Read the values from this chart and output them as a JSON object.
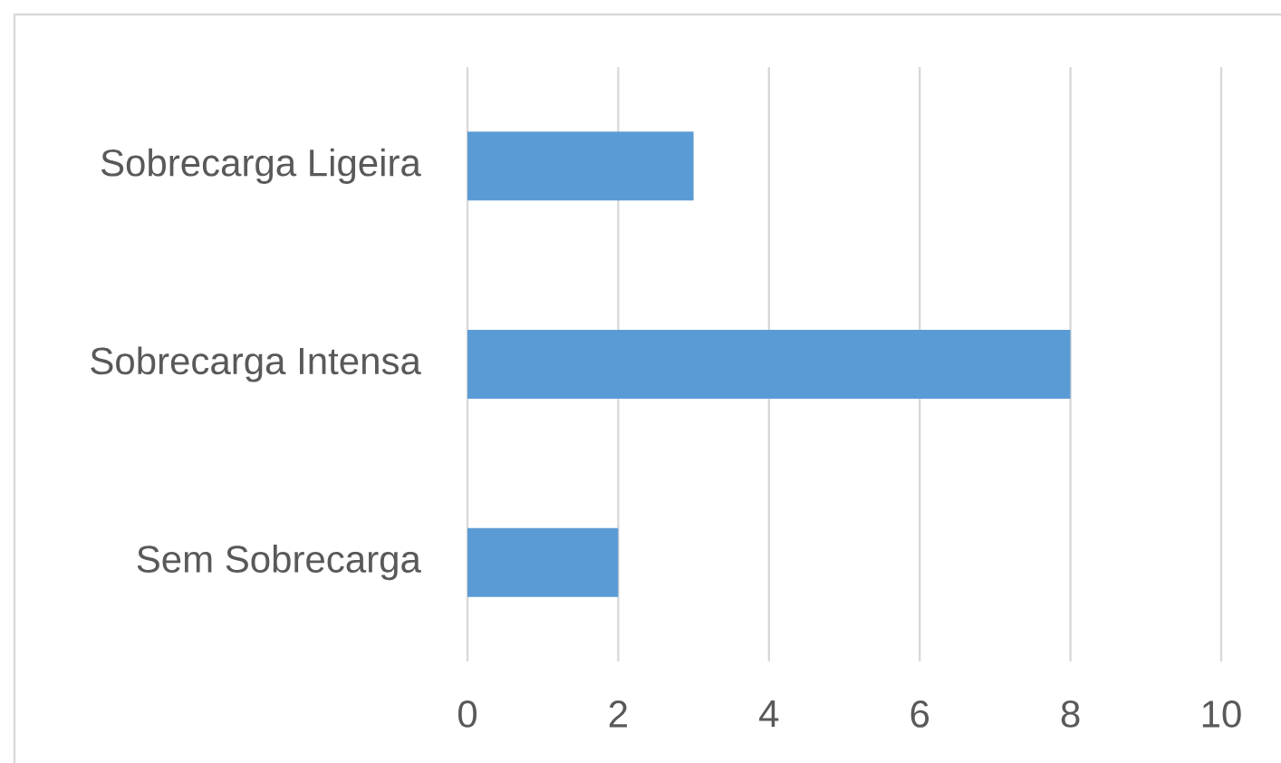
{
  "chart_data": {
    "type": "bar",
    "orientation": "horizontal",
    "categories": [
      "Sobrecarga Ligeira",
      "Sobrecarga Intensa",
      "Sem Sobrecarga"
    ],
    "values": [
      3,
      8,
      2
    ],
    "color": "#5b9bd5",
    "xlim": [
      0,
      10
    ],
    "xticks": [
      0,
      2,
      4,
      6,
      8,
      10
    ],
    "grid": "x"
  }
}
